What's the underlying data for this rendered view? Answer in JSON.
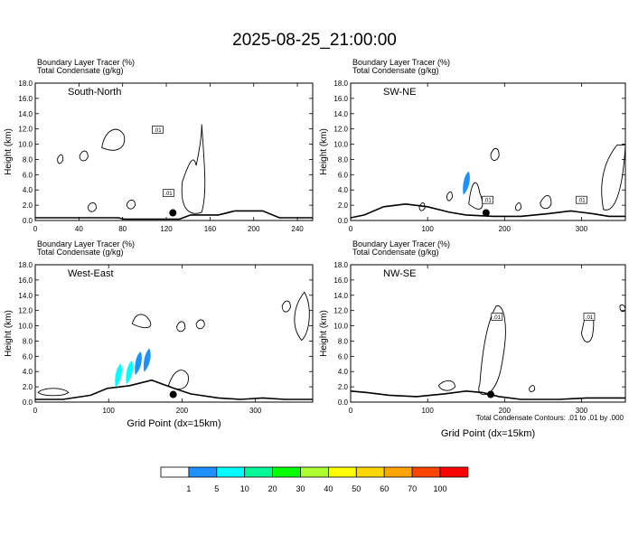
{
  "page": {
    "title": "2025-08-25_21:00:00"
  },
  "chart_data": [
    {
      "type": "contour",
      "line1": "Boundary Layer Tracer   (%)",
      "line2": "Total Condensate   (g/kg)",
      "ylabel": "Height (km)",
      "xlabel": "",
      "section_label": "South-North",
      "x_ticks": [
        0,
        40,
        80,
        120,
        160,
        200,
        240
      ],
      "xlim": [
        0,
        254
      ],
      "ylim": [
        0,
        18
      ],
      "y_ticks": [
        "0.0",
        "2.0",
        "4.0",
        "6.0",
        "8.0",
        "10.0",
        "12.0",
        "14.0",
        "16.0",
        "18.0"
      ],
      "contour_labels": [
        {
          "text": ".01",
          "x": 112,
          "y": 11.9
        },
        {
          "text": ".01",
          "x": 122,
          "y": 3.6
        }
      ],
      "center_point": {
        "x": 126,
        "y": 1.0
      },
      "tracer_patches": []
    },
    {
      "type": "contour",
      "line1": "Boundary Layer Tracer   (%)",
      "line2": "Total Condensate   (g/kg)",
      "ylabel": "Height (km)",
      "xlabel": "",
      "section_label": "SW-NE",
      "x_ticks": [
        0,
        100,
        200,
        300
      ],
      "xlim": [
        0,
        357
      ],
      "ylim": [
        0,
        18
      ],
      "y_ticks": [
        "0.0",
        "2.0",
        "4.0",
        "6.0",
        "8.0",
        "10.0",
        "12.0",
        "14.0",
        "16.0",
        "18.0"
      ],
      "contour_labels": [
        {
          "text": ".01",
          "x": 178,
          "y": 2.7
        },
        {
          "text": ".01",
          "x": 300,
          "y": 2.7
        }
      ],
      "center_point": {
        "x": 176,
        "y": 1.0
      },
      "tracer_patches": [
        {
          "x": 150,
          "y": 5.0,
          "value_bin": "1-5"
        }
      ]
    },
    {
      "type": "contour",
      "line1": "Boundary Layer Tracer   (%)",
      "line2": "Total Condensate   (g/kg)",
      "ylabel": "Height (km)",
      "xlabel": "Grid Point (dx=15km)",
      "section_label": "West-East",
      "x_ticks": [
        0,
        100,
        200,
        300
      ],
      "xlim": [
        0,
        378
      ],
      "ylim": [
        0,
        18
      ],
      "y_ticks": [
        "0.0",
        "2.0",
        "4.0",
        "6.0",
        "8.0",
        "10.0",
        "12.0",
        "14.0",
        "16.0",
        "18.0"
      ],
      "contour_labels": [],
      "center_point": {
        "x": 188,
        "y": 1.0
      },
      "tracer_patches": [
        {
          "x": 113,
          "y": 3.6,
          "value_bin": "5-10"
        },
        {
          "x": 128,
          "y": 4.0,
          "value_bin": "5-10"
        },
        {
          "x": 140,
          "y": 5.2,
          "value_bin": "1-5"
        },
        {
          "x": 152,
          "y": 5.6,
          "value_bin": "1-5"
        }
      ]
    },
    {
      "type": "contour",
      "line1": "Boundary Layer Tracer   (%)",
      "line2": "Total Condensate   (g/kg)",
      "ylabel": "Height (km)",
      "xlabel": "Grid Point (dx=15km)",
      "section_label": "NW-SE",
      "x_ticks": [
        0,
        100,
        200,
        300
      ],
      "xlim": [
        0,
        357
      ],
      "ylim": [
        0,
        18
      ],
      "y_ticks": [
        "0.0",
        "2.0",
        "4.0",
        "6.0",
        "8.0",
        "10.0",
        "12.0",
        "14.0",
        "16.0",
        "18.0"
      ],
      "contour_labels": [
        {
          "text": ".01",
          "x": 190,
          "y": 11.2
        },
        {
          "text": ".01",
          "x": 310,
          "y": 11.2
        }
      ],
      "center_point": {
        "x": 182,
        "y": 1.0
      },
      "tracer_patches": []
    }
  ],
  "contour_note": "Total Condensate Contours: .01 to .01 by .000",
  "colorbar": {
    "colors": [
      "#ffffff",
      "#1e90ff",
      "#00ffff",
      "#00fa9a",
      "#00ff00",
      "#adff2f",
      "#ffff00",
      "#ffd700",
      "#ffa500",
      "#ff4500",
      "#ff0000"
    ],
    "labels": [
      "1",
      "5",
      "10",
      "20",
      "30",
      "40",
      "50",
      "60",
      "70",
      "100"
    ]
  }
}
